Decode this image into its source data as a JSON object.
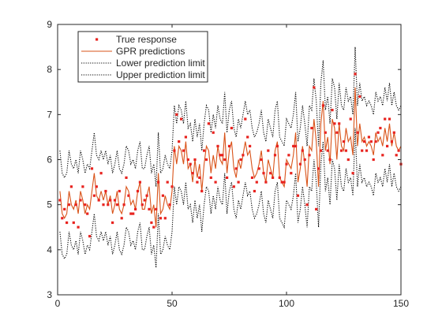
{
  "chart_data": {
    "type": "line",
    "title": "",
    "xlabel": "",
    "ylabel": "",
    "xlim": [
      0,
      150
    ],
    "ylim": [
      3,
      9
    ],
    "xticks": [
      "0",
      "50",
      "100",
      "150"
    ],
    "yticks": [
      "3",
      "4",
      "5",
      "6",
      "7",
      "8",
      "9"
    ],
    "grid": false,
    "legend_position": "top-left",
    "legend": [
      {
        "label": "True response",
        "style": "markers",
        "color": "#e8231f"
      },
      {
        "label": "GPR predictions",
        "style": "solid-line",
        "color": "#d95319"
      },
      {
        "label": "Lower prediction limit",
        "style": "dotted-line",
        "color": "#000000"
      },
      {
        "label": "Upper prediction limit",
        "style": "dotted-line",
        "color": "#000000"
      }
    ],
    "interval_half_width": 0.9,
    "series": [
      {
        "name": "True response",
        "kind": "markers",
        "color": "#e8231f",
        "x": [
          1,
          2,
          3,
          4,
          5,
          6,
          7,
          8,
          9,
          10,
          11,
          12,
          13,
          14,
          15,
          16,
          17,
          18,
          19,
          20,
          21,
          22,
          23,
          24,
          25,
          26,
          27,
          28,
          29,
          30,
          31,
          32,
          33,
          34,
          35,
          36,
          37,
          38,
          39,
          40,
          41,
          42,
          43,
          44,
          45,
          46,
          47,
          48,
          49,
          50,
          51,
          52,
          53,
          54,
          55,
          56,
          57,
          58,
          59,
          60,
          61,
          62,
          63,
          64,
          65,
          66,
          67,
          68,
          69,
          70,
          71,
          72,
          73,
          74,
          75,
          76,
          77,
          78,
          79,
          80,
          81,
          82,
          83,
          84,
          85,
          86,
          87,
          88,
          89,
          90,
          91,
          92,
          93,
          94,
          95,
          96,
          97,
          98,
          99,
          100,
          101,
          102,
          103,
          104,
          105,
          106,
          107,
          108,
          109,
          110,
          111,
          112,
          113,
          114,
          115,
          116,
          117,
          118,
          119,
          120,
          121,
          122,
          123,
          124,
          125,
          126,
          127,
          128,
          129,
          130,
          131,
          132,
          133,
          134,
          135,
          136,
          137,
          138,
          139,
          140,
          141,
          142,
          143,
          144,
          145,
          146,
          147,
          148,
          149,
          150
        ],
        "y": [
          5.1,
          4.7,
          4.9,
          4.6,
          5.0,
          5.4,
          4.6,
          5.0,
          4.5,
          5.1,
          5.4,
          5.0,
          4.8,
          4.3,
          5.8,
          5.2,
          5.4,
          5.1,
          5.7,
          5.0,
          5.3,
          5.0,
          5.1,
          4.6,
          5.1,
          5.0,
          5.3,
          4.7,
          5.0,
          5.6,
          5.2,
          4.8,
          4.8,
          4.9,
          5.3,
          5.5,
          5.0,
          5.1,
          5.2,
          4.9,
          4.6,
          4.5,
          4.9,
          5.5,
          4.7,
          5.2,
          4.7,
          5.5,
          5.0,
          5.4,
          6.2,
          7.0,
          6.4,
          6.9,
          6.2,
          6.5,
          6.0,
          5.9,
          5.7,
          6.0,
          5.5,
          5.6,
          5.3,
          6.2,
          6.0,
          6.8,
          5.6,
          6.6,
          5.5,
          6.3,
          6.1,
          6.1,
          6.0,
          5.6,
          6.3,
          6.7,
          5.4,
          5.8,
          5.5,
          6.0,
          6.1,
          6.9,
          6.5,
          6.3,
          5.6,
          5.3,
          5.5,
          5.8,
          6.0,
          5.7,
          5.5,
          6.2,
          5.7,
          5.6,
          6.1,
          6.3,
          5.6,
          5.5,
          5.5,
          5.9,
          6.1,
          5.7,
          6.3,
          6.3,
          5.2,
          5.9,
          6.2,
          6.0,
          5.0,
          6.1,
          6.7,
          7.6,
          4.9,
          5.8,
          6.2,
          7.2,
          6.6,
          6.2,
          6.0,
          7.1,
          6.8,
          6.6,
          6.8,
          6.2,
          6.4,
          6.2,
          6.0,
          6.9,
          5.7,
          7.9,
          6.6,
          7.4,
          6.2,
          6.4,
          6.2,
          6.5,
          6.4,
          6.0,
          6.4,
          6.6,
          6.7,
          6.1,
          6.9,
          6.3,
          6.9,
          6.4,
          6.6,
          6.1,
          6.2,
          5.9
        ]
      },
      {
        "name": "GPR predictions",
        "kind": "line",
        "color": "#d95319",
        "x": [
          1,
          2,
          3,
          4,
          5,
          6,
          7,
          8,
          9,
          10,
          11,
          12,
          13,
          14,
          15,
          16,
          17,
          18,
          19,
          20,
          21,
          22,
          23,
          24,
          25,
          26,
          27,
          28,
          29,
          30,
          31,
          32,
          33,
          34,
          35,
          36,
          37,
          38,
          39,
          40,
          41,
          42,
          43,
          44,
          45,
          46,
          47,
          48,
          49,
          50,
          51,
          52,
          53,
          54,
          55,
          56,
          57,
          58,
          59,
          60,
          61,
          62,
          63,
          64,
          65,
          66,
          67,
          68,
          69,
          70,
          71,
          72,
          73,
          74,
          75,
          76,
          77,
          78,
          79,
          80,
          81,
          82,
          83,
          84,
          85,
          86,
          87,
          88,
          89,
          90,
          91,
          92,
          93,
          94,
          95,
          96,
          97,
          98,
          99,
          100,
          101,
          102,
          103,
          104,
          105,
          106,
          107,
          108,
          109,
          110,
          111,
          112,
          113,
          114,
          115,
          116,
          117,
          118,
          119,
          120,
          121,
          122,
          123,
          124,
          125,
          126,
          127,
          128,
          129,
          130,
          131,
          132,
          133,
          134,
          135,
          136,
          137,
          138,
          139,
          140,
          141,
          142,
          143,
          144,
          145,
          146,
          147,
          148,
          149,
          150
        ],
        "y": [
          5.3,
          4.8,
          4.7,
          4.8,
          5.3,
          5.0,
          4.9,
          5.1,
          4.8,
          5.3,
          5.1,
          4.8,
          5.0,
          4.9,
          5.3,
          5.7,
          5.2,
          5.1,
          5.3,
          5.1,
          5.3,
          5.0,
          5.2,
          4.8,
          5.0,
          5.3,
          4.9,
          4.8,
          5.0,
          5.4,
          5.3,
          5.0,
          5.1,
          4.9,
          5.3,
          5.5,
          4.9,
          4.9,
          5.2,
          5.4,
          4.8,
          5.0,
          4.5,
          5.7,
          4.8,
          4.9,
          5.2,
          5.0,
          4.9,
          5.3,
          6.3,
          5.9,
          6.3,
          6.2,
          5.9,
          6.4,
          5.8,
          5.9,
          5.5,
          6.0,
          5.6,
          5.9,
          5.3,
          5.9,
          6.3,
          6.2,
          5.7,
          6.1,
          5.8,
          6.3,
          6.0,
          5.9,
          6.6,
          5.7,
          6.2,
          6.4,
          5.8,
          5.6,
          6.0,
          5.8,
          6.1,
          6.4,
          6.1,
          6.2,
          5.8,
          5.6,
          5.7,
          5.9,
          6.2,
          5.7,
          5.5,
          6.0,
          5.8,
          5.6,
          6.2,
          6.4,
          5.6,
          5.5,
          5.4,
          6.0,
          5.9,
          5.8,
          6.1,
          6.6,
          5.5,
          5.8,
          6.3,
          5.9,
          5.4,
          6.3,
          6.2,
          6.9,
          6.4,
          5.4,
          6.8,
          7.3,
          6.2,
          6.5,
          5.9,
          6.9,
          6.7,
          6.0,
          6.8,
          6.3,
          6.2,
          6.7,
          6.4,
          6.5,
          6.1,
          7.6,
          6.3,
          6.8,
          6.4,
          6.5,
          6.3,
          6.4,
          6.3,
          6.1,
          6.6,
          6.4,
          6.5,
          6.3,
          6.7,
          6.4,
          6.8,
          6.3,
          6.6,
          6.3,
          6.2,
          6.3
        ]
      },
      {
        "name": "Lower prediction limit",
        "kind": "dotted-line",
        "color": "#000000",
        "derived": "GPR predictions - 0.9"
      },
      {
        "name": "Upper prediction limit",
        "kind": "dotted-line",
        "color": "#000000",
        "derived": "GPR predictions + 0.9"
      }
    ]
  }
}
